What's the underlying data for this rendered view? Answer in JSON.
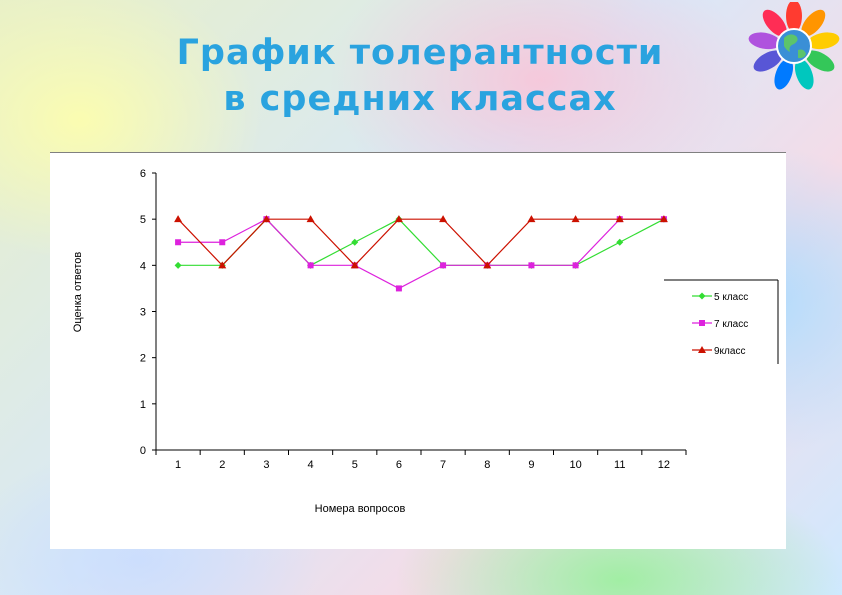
{
  "slide": {
    "title_line1": "График толерантности",
    "title_line2": "в средних классах"
  },
  "colors": {
    "title": "#2aa3df",
    "series_5": "#33dd33",
    "series_7": "#dd22dd",
    "series_9": "#cc1100"
  },
  "logo": {
    "icon": "hands-globe-icon"
  },
  "chart_data": {
    "type": "line",
    "title": "",
    "xlabel": "Номера вопросов",
    "ylabel": "Оценка ответов",
    "categories": [
      "1",
      "2",
      "3",
      "4",
      "5",
      "6",
      "7",
      "8",
      "9",
      "10",
      "11",
      "12"
    ],
    "ylim": [
      0,
      6
    ],
    "yticks": [
      "0",
      "1",
      "2",
      "3",
      "4",
      "5",
      "6"
    ],
    "grid": false,
    "legend_position": "right",
    "series": [
      {
        "name": "5 класс",
        "marker": "diamond",
        "color": "#33dd33",
        "values": [
          4,
          4,
          5,
          4,
          4.5,
          5,
          4,
          4,
          4,
          4,
          4.5,
          5
        ]
      },
      {
        "name": "7 класс",
        "marker": "square",
        "color": "#dd22dd",
        "values": [
          4.5,
          4.5,
          5,
          4,
          4,
          3.5,
          4,
          4,
          4,
          4,
          5,
          5
        ]
      },
      {
        "name": "9класс",
        "marker": "triangle",
        "color": "#cc1100",
        "values": [
          5,
          4,
          5,
          5,
          4,
          5,
          5,
          4,
          5,
          5,
          5,
          5
        ]
      }
    ]
  }
}
